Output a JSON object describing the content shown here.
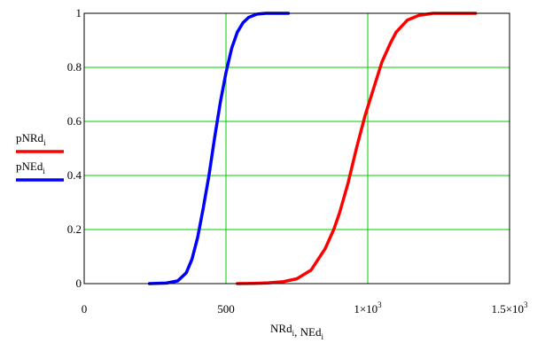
{
  "chart_data": {
    "type": "line",
    "x_axis": {
      "label_parts": [
        {
          "text": "NRd",
          "sub": "i"
        },
        {
          "text": ", NEd",
          "sub": "i"
        }
      ],
      "range": [
        0,
        1500
      ],
      "ticks": [
        {
          "value": 0,
          "base": "0",
          "exp": ""
        },
        {
          "value": 500,
          "base": "500",
          "exp": ""
        },
        {
          "value": 1000,
          "base": "1×10",
          "exp": "3"
        },
        {
          "value": 1500,
          "base": "1.5×10",
          "exp": "3"
        }
      ]
    },
    "y_axis": {
      "range": [
        0,
        1
      ],
      "ticks": [
        {
          "value": 0,
          "label": "0"
        },
        {
          "value": 0.2,
          "label": "0.2"
        },
        {
          "value": 0.4,
          "label": "0.4"
        },
        {
          "value": 0.6,
          "label": "0.6"
        },
        {
          "value": 0.8,
          "label": "0.8"
        },
        {
          "value": 1,
          "label": "1"
        }
      ]
    },
    "grid": true,
    "grid_color": "#00cc00",
    "legend_placement": "left",
    "series": [
      {
        "name": "pNRd",
        "name_sub": "i",
        "color": "#ff0000",
        "points": [
          [
            540,
            0.0
          ],
          [
            600,
            0.001
          ],
          [
            650,
            0.003
          ],
          [
            700,
            0.007
          ],
          [
            750,
            0.018
          ],
          [
            800,
            0.05
          ],
          [
            850,
            0.13
          ],
          [
            880,
            0.2
          ],
          [
            900,
            0.26
          ],
          [
            930,
            0.37
          ],
          [
            960,
            0.5
          ],
          [
            990,
            0.62
          ],
          [
            1020,
            0.72
          ],
          [
            1050,
            0.82
          ],
          [
            1080,
            0.89
          ],
          [
            1100,
            0.93
          ],
          [
            1140,
            0.975
          ],
          [
            1180,
            0.992
          ],
          [
            1230,
            1.0
          ],
          [
            1380,
            1.0
          ]
        ]
      },
      {
        "name": "pNEd",
        "name_sub": "i",
        "color": "#0000ff",
        "points": [
          [
            230,
            0.0
          ],
          [
            290,
            0.002
          ],
          [
            330,
            0.01
          ],
          [
            360,
            0.04
          ],
          [
            380,
            0.09
          ],
          [
            400,
            0.17
          ],
          [
            420,
            0.28
          ],
          [
            440,
            0.4
          ],
          [
            460,
            0.54
          ],
          [
            480,
            0.67
          ],
          [
            500,
            0.78
          ],
          [
            520,
            0.87
          ],
          [
            540,
            0.93
          ],
          [
            560,
            0.965
          ],
          [
            580,
            0.985
          ],
          [
            610,
            0.997
          ],
          [
            640,
            1.0
          ],
          [
            720,
            1.0
          ]
        ]
      }
    ]
  }
}
